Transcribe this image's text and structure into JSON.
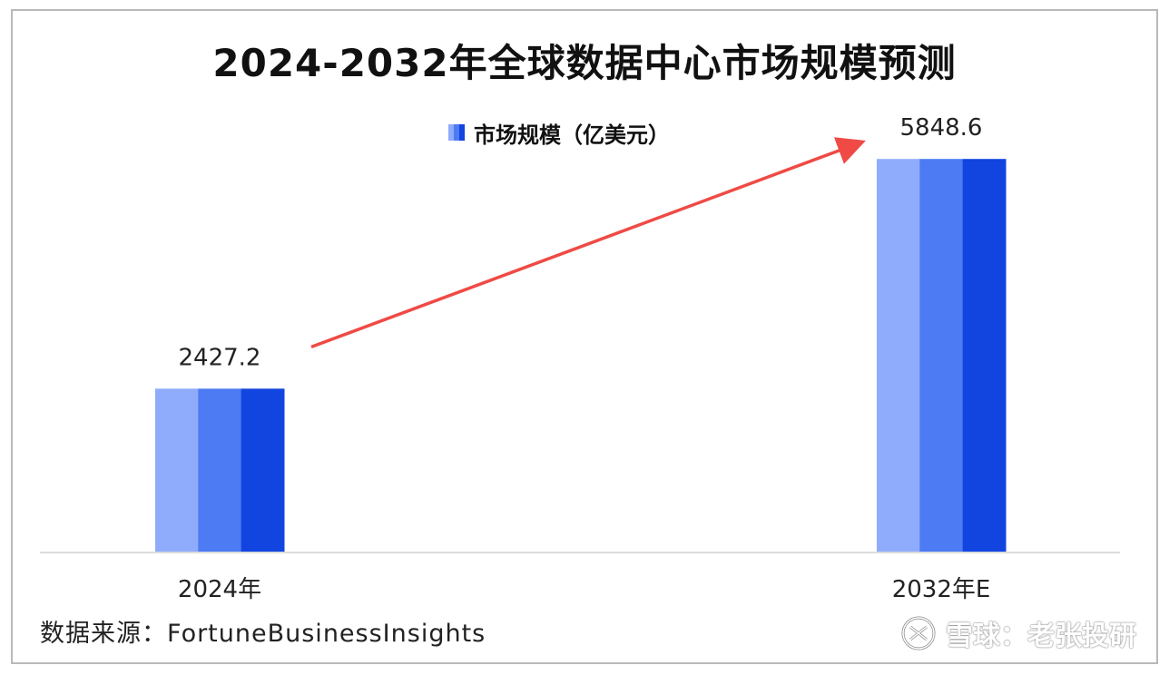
{
  "chart_data": {
    "type": "bar",
    "title": "2024-2032年全球数据中心市场规模预测",
    "categories": [
      "2024年",
      "2032年E"
    ],
    "series": [
      {
        "name": "市场规模（亿美元）",
        "values": [
          2427.2,
          5848.6
        ]
      }
    ],
    "value_labels": [
      "2427.2",
      "5848.6"
    ],
    "ylim": [
      0,
      7000
    ],
    "grid": false,
    "legend_position": "top-center",
    "y_axis_visible": false,
    "colors": {
      "bar_light": "#8fabfb",
      "bar_mid": "#4d7bf3",
      "bar_dark": "#1244e0",
      "arrow": "#ef4a45",
      "axis": "#d0d0d0"
    },
    "annotations": [
      {
        "type": "arrow",
        "from_category": "2024年",
        "to_category": "2032年E"
      }
    ]
  },
  "footer": {
    "source": "数据来源：FortuneBusinessInsights",
    "watermark": "雪球：老张投研",
    "watermark_icon": "snowball-logo-icon"
  }
}
